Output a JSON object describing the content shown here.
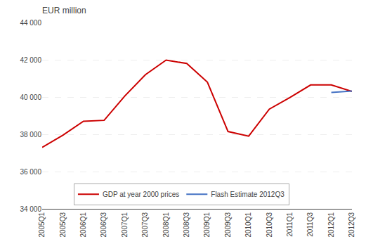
{
  "chart_data": {
    "type": "line",
    "title": "EUR million",
    "categories": [
      "2005Q1",
      "2005Q3",
      "2006Q1",
      "2006Q3",
      "2007Q1",
      "2007Q3",
      "2008Q1",
      "2008Q3",
      "2009Q1",
      "2009Q3",
      "2010Q1",
      "2010Q3",
      "2011Q1",
      "2011Q3",
      "2012Q1",
      "2012Q3"
    ],
    "series": [
      {
        "name": "GDP at year 2000 prices",
        "color": "#cc0000",
        "values": [
          37300,
          37950,
          38700,
          38750,
          40050,
          41200,
          41980,
          41800,
          40800,
          38150,
          37900,
          39350,
          39980,
          40650,
          40650,
          40300
        ]
      },
      {
        "name": "Flash Estimate 2012Q3",
        "color": "#4472c4",
        "values": [
          null,
          null,
          null,
          null,
          null,
          null,
          null,
          null,
          null,
          null,
          null,
          null,
          null,
          null,
          40250,
          40320
        ]
      }
    ],
    "ylim": [
      34000,
      44000
    ],
    "yticks": [
      {
        "value": 34000,
        "label": "34 000"
      },
      {
        "value": 36000,
        "label": "36 000"
      },
      {
        "value": 38000,
        "label": "38 000"
      },
      {
        "value": 40000,
        "label": "40 000"
      },
      {
        "value": 42000,
        "label": "42 000"
      },
      {
        "value": 44000,
        "label": "44 000"
      }
    ],
    "grid": true,
    "legend": "bottom"
  }
}
